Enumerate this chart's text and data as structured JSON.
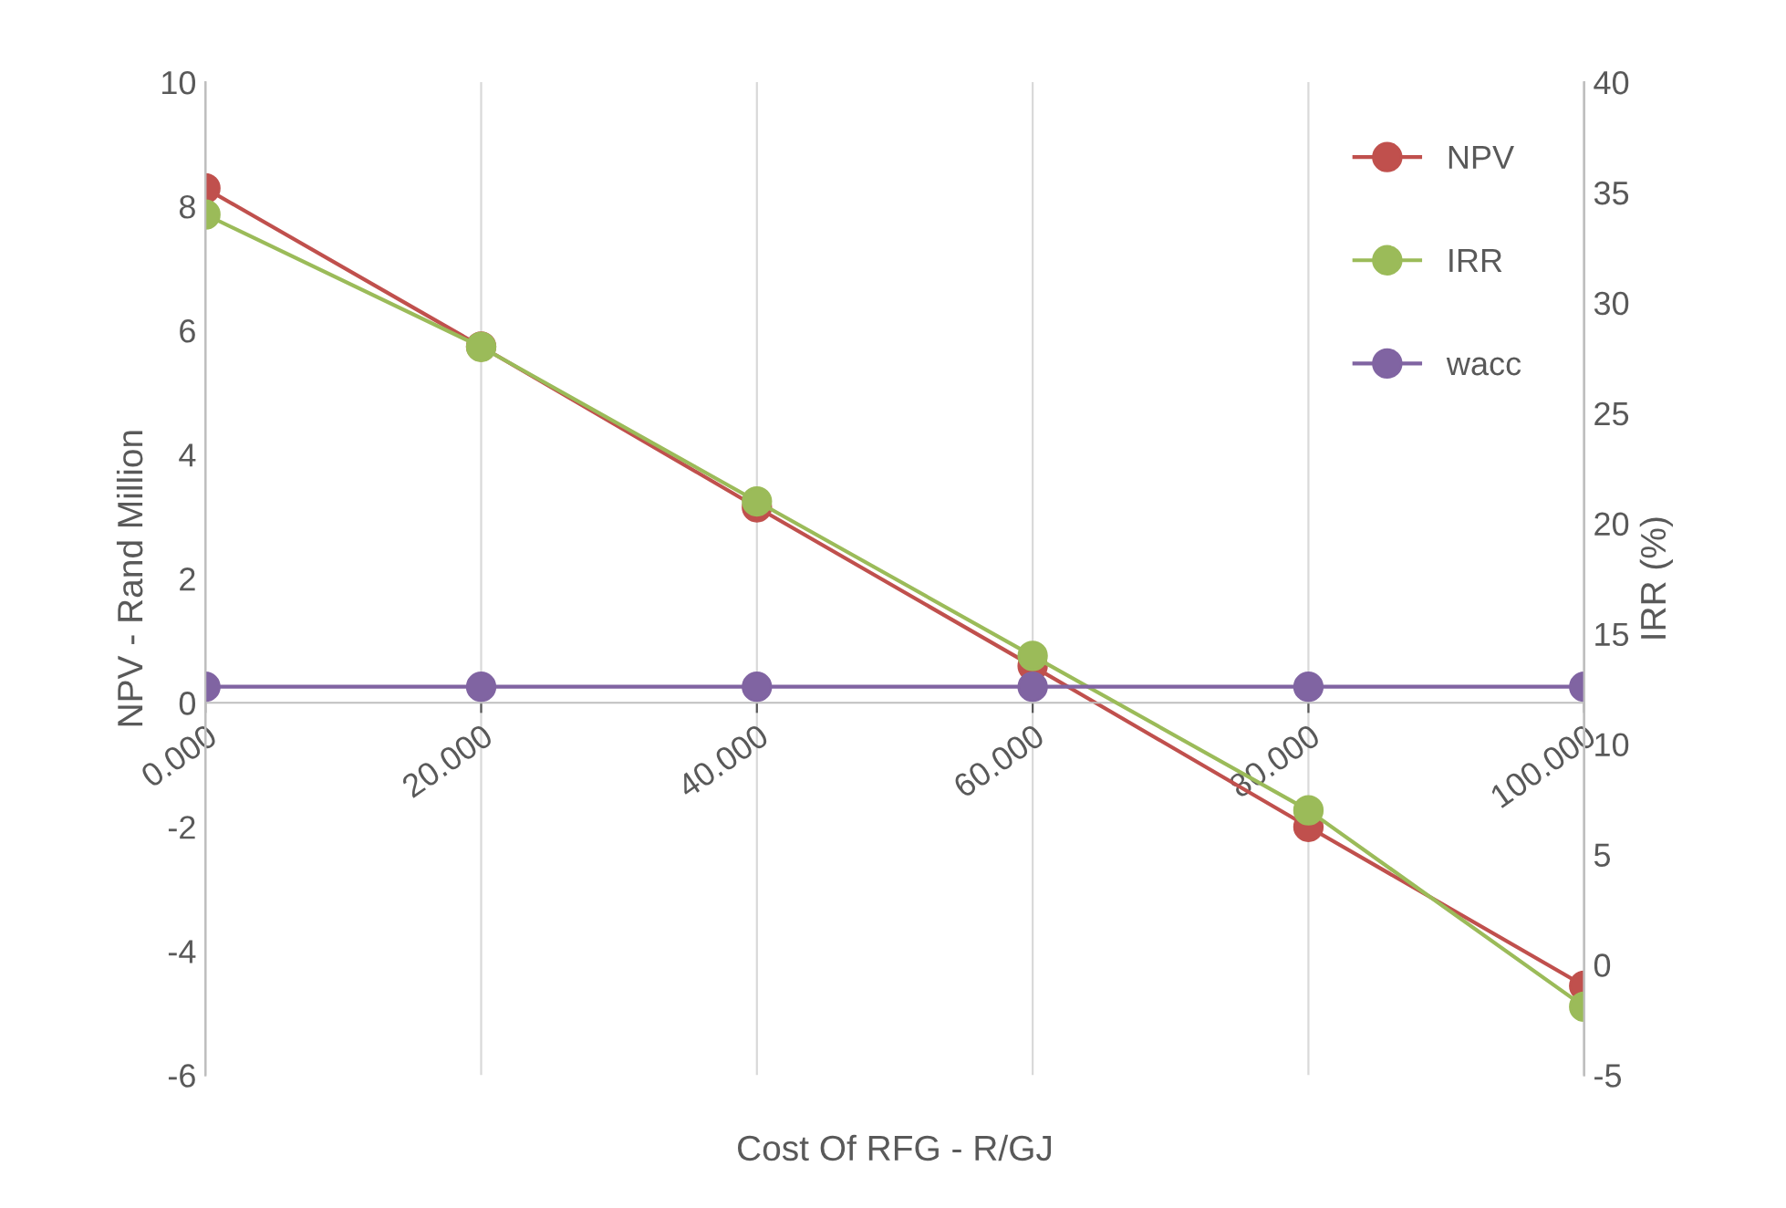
{
  "chart_data": {
    "type": "line",
    "xlabel": "Cost Of RFG - R/GJ",
    "ylabel": "NPV - Rand Million",
    "y2label": "IRR (%)",
    "categories": [
      "0.000",
      "20.000",
      "40.000",
      "60.000",
      "80.000",
      "100.000"
    ],
    "series": [
      {
        "name": "NPV",
        "color": "#c0504d",
        "values": [
          8.29,
          5.74,
          3.15,
          0.59,
          -2.0,
          -4.56
        ]
      },
      {
        "name": "IRR",
        "color": "#9bbb59",
        "axis": "y2",
        "values": [
          34.0,
          28.0,
          21.0,
          14.0,
          7.0,
          -1.9
        ]
      },
      {
        "name": "wacc",
        "color": "#8064a2",
        "axis": "y2",
        "values": [
          12.6,
          12.6,
          12.6,
          12.6,
          12.6,
          12.6
        ]
      }
    ],
    "ylim": [
      -6,
      10
    ],
    "yticks": [
      -6,
      -4,
      -2,
      0,
      2,
      4,
      6,
      8,
      10
    ],
    "y2lim": [
      -5,
      40
    ],
    "y2ticks": [
      -5,
      0,
      5,
      10,
      15,
      20,
      25,
      30,
      35,
      40
    ],
    "grid": "x",
    "legend": "top right",
    "marker": "circle",
    "line_style": "solid"
  }
}
